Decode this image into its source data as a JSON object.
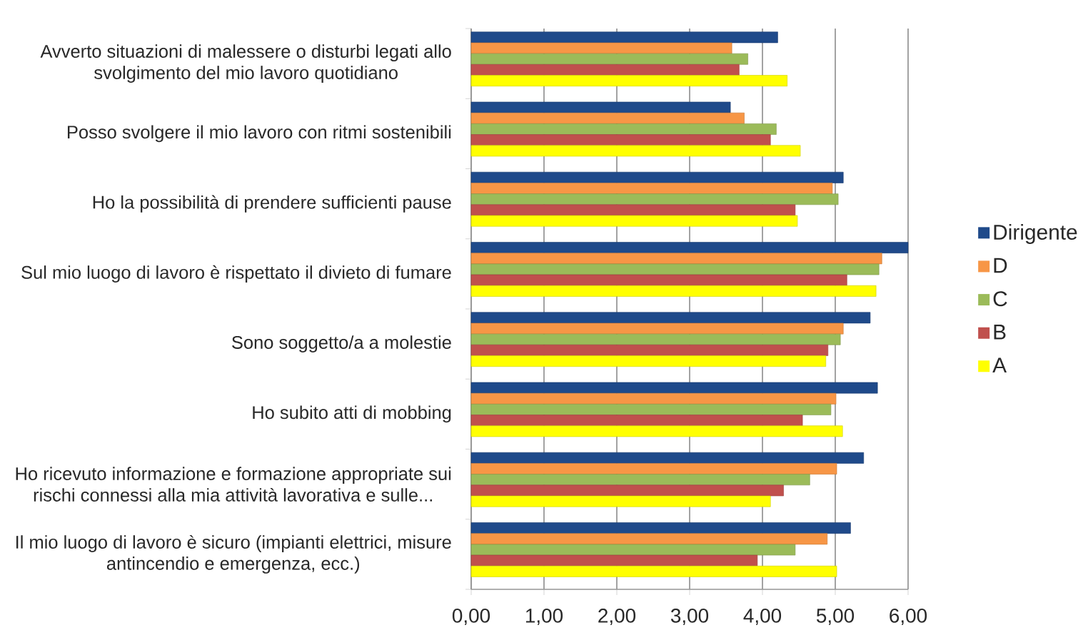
{
  "chart_data": {
    "type": "bar",
    "orientation": "horizontal",
    "categories": [
      "Avverto situazioni di malessere o disturbi legati allo svolgimento del mio lavoro quotidiano",
      "Posso svolgere il mio lavoro con ritmi sostenibili",
      "Ho la possibilità di prendere sufficienti pause",
      "Sul mio luogo di lavoro è rispettato il divieto di fumare",
      "Sono soggetto/a a molestie",
      "Ho subito atti di mobbing",
      "Ho ricevuto informazione e formazione appropriate sui rischi connessi alla mia attività lavorativa e sulle...",
      "Il mio luogo di lavoro è sicuro (impianti elettrici, misure antincendio e emergenza, ecc.)"
    ],
    "series": [
      {
        "name": "Dirigente",
        "color": "#1F4A8A",
        "values": [
          4.21,
          3.56,
          5.11,
          6.0,
          5.48,
          5.58,
          5.39,
          5.21
        ]
      },
      {
        "name": "D",
        "color": "#F79646",
        "values": [
          3.58,
          3.75,
          4.96,
          5.64,
          5.11,
          5.01,
          5.02,
          4.89
        ]
      },
      {
        "name": "C",
        "color": "#9BBB59",
        "values": [
          3.8,
          4.19,
          5.04,
          5.6,
          5.07,
          4.94,
          4.65,
          4.45
        ]
      },
      {
        "name": "B",
        "color": "#C0504D",
        "values": [
          3.68,
          4.11,
          4.45,
          5.16,
          4.9,
          4.55,
          4.29,
          3.93
        ]
      },
      {
        "name": "A",
        "color": "#FFFF00",
        "values": [
          4.34,
          4.52,
          4.48,
          5.56,
          4.87,
          5.1,
          4.11,
          5.02
        ]
      }
    ],
    "xlim": [
      0,
      6
    ],
    "xticks": [
      {
        "value": 0,
        "label": "0,00"
      },
      {
        "value": 1,
        "label": "1,00"
      },
      {
        "value": 2,
        "label": "2,00"
      },
      {
        "value": 3,
        "label": "3,00"
      },
      {
        "value": 4,
        "label": "4,00"
      },
      {
        "value": 5,
        "label": "5,00"
      },
      {
        "value": 6,
        "label": "6,00"
      }
    ],
    "grid": "x",
    "legend": "right"
  }
}
